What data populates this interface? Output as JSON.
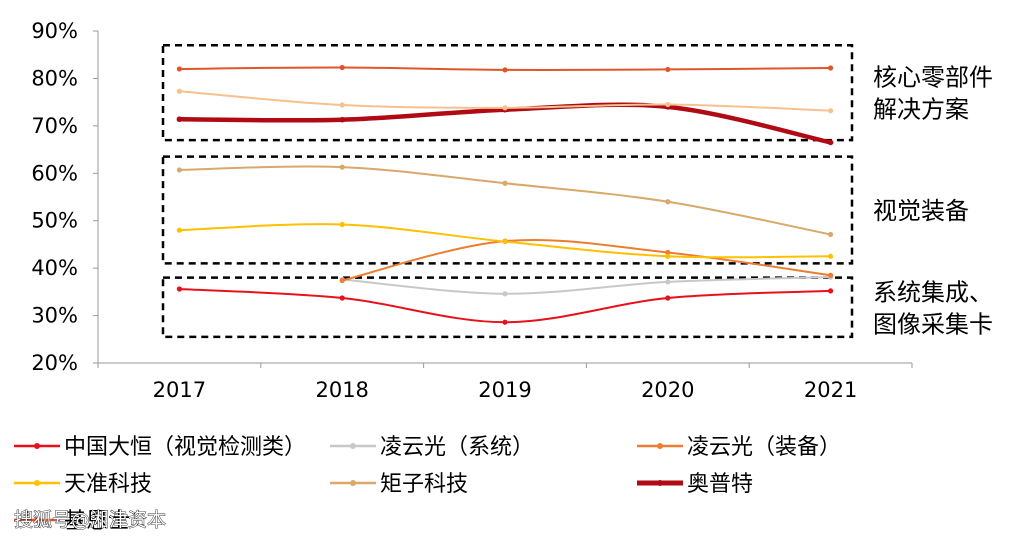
{
  "chart_data": {
    "type": "line",
    "x": [
      "2017",
      "2018",
      "2019",
      "2020",
      "2021"
    ],
    "yticks": [
      "20%",
      "30%",
      "40%",
      "50%",
      "60%",
      "70%",
      "80%",
      "90%"
    ],
    "ylim": [
      20,
      90
    ],
    "grid": false,
    "legend_position": "bottom",
    "series": [
      {
        "name": "中国大恒（视觉检测类）",
        "color": "#e8111a",
        "width": 2,
        "values": [
          35.6,
          33.7,
          28.6,
          33.7,
          35.2
        ]
      },
      {
        "name": "凌云光（系统）",
        "color": "#c8c8c8",
        "width": 2,
        "values": [
          null,
          37.6,
          34.6,
          37.1,
          38.1
        ]
      },
      {
        "name": "凌云光（装备）",
        "color": "#ed7d31",
        "width": 2,
        "values": [
          null,
          37.4,
          45.7,
          43.3,
          38.5
        ]
      },
      {
        "name": "天准科技",
        "color": "#ffc000",
        "width": 2,
        "values": [
          48.0,
          49.2,
          45.6,
          42.5,
          42.5
        ]
      },
      {
        "name": "矩子科技",
        "color": "#d9a86a",
        "width": 2,
        "values": [
          60.7,
          61.3,
          57.9,
          54.0,
          47.1
        ]
      },
      {
        "name": "奥普特",
        "color": "#b00b14",
        "width": 4.5,
        "values": [
          71.4,
          71.3,
          73.4,
          74.0,
          66.5
        ]
      },
      {
        "name": "基恩士",
        "color": "#e0562b",
        "width": 2,
        "values": [
          82.0,
          82.3,
          81.8,
          81.9,
          82.2
        ]
      },
      {
        "name": "",
        "color": "#f5c28f",
        "width": 2,
        "values": [
          77.3,
          74.4,
          73.8,
          74.5,
          73.2
        ]
      }
    ],
    "annotations": [
      {
        "text_lines": [
          "核心零部件",
          "解决方案"
        ],
        "y_range": [
          67,
          87
        ]
      },
      {
        "text_lines": [
          "视觉装备"
        ],
        "y_range": [
          41,
          63.5
        ]
      },
      {
        "text_lines": [
          "系统集成、",
          "图像采集卡"
        ],
        "y_range": [
          25.5,
          38
        ]
      }
    ]
  },
  "watermark": "搜狐号@湘津资本"
}
